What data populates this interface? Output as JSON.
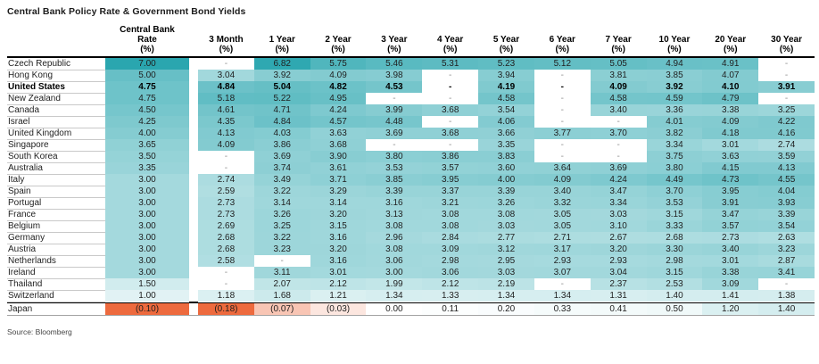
{
  "chart_data": {
    "type": "heatmap",
    "title": "Central Bank Policy Rate & Government Bond Yields",
    "source": "Source: Bloomberg",
    "legend_position": "none",
    "grid": false,
    "colors": {
      "positive_max_teal": "#2aa6af",
      "negative_max_orange": "#ed6a3e",
      "zero_white": "#ffffff",
      "header_rule": "#000000",
      "row_rule": "#c9c9c9"
    },
    "color_scale": {
      "positive_full_value": 7.0,
      "cb_negative_full_value": 0.1,
      "bond_negative_full_value": 0.18
    },
    "columns": [
      {
        "id": "central-bank-rate",
        "lines": [
          "Central Bank",
          "Rate"
        ],
        "unit": "(%)"
      },
      {
        "id": "3-month",
        "lines": [
          "3 Month"
        ],
        "unit": "(%)"
      },
      {
        "id": "1-year",
        "lines": [
          "1 Year"
        ],
        "unit": "(%)"
      },
      {
        "id": "2-year",
        "lines": [
          "2 Year"
        ],
        "unit": "(%)"
      },
      {
        "id": "3-year",
        "lines": [
          "3 Year"
        ],
        "unit": "(%)"
      },
      {
        "id": "4-year",
        "lines": [
          "4 Year"
        ],
        "unit": "(%)"
      },
      {
        "id": "5-year",
        "lines": [
          "5 Year"
        ],
        "unit": "(%)"
      },
      {
        "id": "6-year",
        "lines": [
          "6 Year"
        ],
        "unit": "(%)"
      },
      {
        "id": "7-year",
        "lines": [
          "7 Year"
        ],
        "unit": "(%)"
      },
      {
        "id": "10-year",
        "lines": [
          "10 Year"
        ],
        "unit": "(%)"
      },
      {
        "id": "20-year",
        "lines": [
          "20 Year"
        ],
        "unit": "(%)"
      },
      {
        "id": "30-year",
        "lines": [
          "30 Year"
        ],
        "unit": "(%)"
      }
    ],
    "missing_value_display": "-",
    "rows": [
      {
        "country": "Czech Republic",
        "values": [
          "7.00",
          "-",
          "6.82",
          "5.75",
          "5.46",
          "5.31",
          "5.23",
          "5.12",
          "5.05",
          "4.94",
          "4.91",
          "-"
        ]
      },
      {
        "country": "Hong Kong",
        "values": [
          "5.00",
          "3.04",
          "3.92",
          "4.09",
          "3.98",
          "-",
          "3.94",
          "-",
          "3.81",
          "3.85",
          "4.07",
          "-"
        ]
      },
      {
        "country": "United States",
        "bold": true,
        "values": [
          "4.75",
          "4.84",
          "5.04",
          "4.82",
          "4.53",
          "-",
          "4.19",
          "-",
          "4.09",
          "3.92",
          "4.10",
          "3.91"
        ]
      },
      {
        "country": "New Zealand",
        "values": [
          "4.75",
          "5.18",
          "5.22",
          "4.95",
          "-",
          "-",
          "4.58",
          "-",
          "4.58",
          "4.59",
          "4.79",
          "-"
        ]
      },
      {
        "country": "Canada",
        "values": [
          "4.50",
          "4.61",
          "4.71",
          "4.24",
          "3.99",
          "3.68",
          "3.54",
          "-",
          "3.40",
          "3.36",
          "3.38",
          "3.25"
        ]
      },
      {
        "country": "Israel",
        "values": [
          "4.25",
          "4.35",
          "4.84",
          "4.57",
          "4.48",
          "-",
          "4.06",
          "-",
          "-",
          "4.01",
          "4.09",
          "4.22"
        ]
      },
      {
        "country": "United Kingdom",
        "values": [
          "4.00",
          "4.13",
          "4.03",
          "3.63",
          "3.69",
          "3.68",
          "3.66",
          "3.77",
          "3.70",
          "3.82",
          "4.18",
          "4.16"
        ]
      },
      {
        "country": "Singapore",
        "values": [
          "3.65",
          "4.09",
          "3.86",
          "3.68",
          "-",
          "-",
          "3.35",
          "-",
          "-",
          "3.34",
          "3.01",
          "2.74"
        ]
      },
      {
        "country": "South Korea",
        "values": [
          "3.50",
          "-",
          "3.69",
          "3.90",
          "3.80",
          "3.86",
          "3.83",
          "-",
          "-",
          "3.75",
          "3.63",
          "3.59"
        ]
      },
      {
        "country": "Australia",
        "values": [
          "3.35",
          "-",
          "3.74",
          "3.61",
          "3.53",
          "3.57",
          "3.60",
          "3.64",
          "3.69",
          "3.80",
          "4.15",
          "4.13"
        ]
      },
      {
        "country": "Italy",
        "values": [
          "3.00",
          "2.74",
          "3.49",
          "3.71",
          "3.85",
          "3.95",
          "4.00",
          "4.09",
          "4.24",
          "4.49",
          "4.73",
          "4.55"
        ]
      },
      {
        "country": "Spain",
        "values": [
          "3.00",
          "2.59",
          "3.22",
          "3.29",
          "3.39",
          "3.37",
          "3.39",
          "3.40",
          "3.47",
          "3.70",
          "3.95",
          "4.04"
        ]
      },
      {
        "country": "Portugal",
        "values": [
          "3.00",
          "2.73",
          "3.14",
          "3.14",
          "3.16",
          "3.21",
          "3.26",
          "3.32",
          "3.34",
          "3.53",
          "3.91",
          "3.93"
        ]
      },
      {
        "country": "France",
        "values": [
          "3.00",
          "2.73",
          "3.26",
          "3.20",
          "3.13",
          "3.08",
          "3.08",
          "3.05",
          "3.03",
          "3.15",
          "3.47",
          "3.39"
        ]
      },
      {
        "country": "Belgium",
        "values": [
          "3.00",
          "2.69",
          "3.25",
          "3.15",
          "3.08",
          "3.08",
          "3.03",
          "3.05",
          "3.10",
          "3.33",
          "3.57",
          "3.54"
        ]
      },
      {
        "country": "Germany",
        "values": [
          "3.00",
          "2.68",
          "3.22",
          "3.16",
          "2.96",
          "2.84",
          "2.77",
          "2.71",
          "2.67",
          "2.68",
          "2.73",
          "2.63"
        ]
      },
      {
        "country": "Austria",
        "values": [
          "3.00",
          "2.68",
          "3.23",
          "3.20",
          "3.08",
          "3.09",
          "3.12",
          "3.17",
          "3.20",
          "3.30",
          "3.40",
          "3.23"
        ]
      },
      {
        "country": "Netherlands",
        "values": [
          "3.00",
          "2.58",
          "-",
          "3.16",
          "3.06",
          "2.98",
          "2.95",
          "2.93",
          "2.93",
          "2.98",
          "3.01",
          "2.87"
        ]
      },
      {
        "country": "Ireland",
        "values": [
          "3.00",
          "-",
          "3.11",
          "3.01",
          "3.00",
          "3.06",
          "3.03",
          "3.07",
          "3.04",
          "3.15",
          "3.38",
          "3.41"
        ]
      },
      {
        "country": "Thailand",
        "values": [
          "1.50",
          "-",
          "2.07",
          "2.12",
          "1.99",
          "2.12",
          "2.19",
          "-",
          "2.37",
          "2.53",
          "3.09",
          "-"
        ]
      },
      {
        "country": "Switzerland",
        "values": [
          "1.00",
          "1.18",
          "1.68",
          "1.21",
          "1.34",
          "1.33",
          "1.34",
          "1.34",
          "1.31",
          "1.40",
          "1.41",
          "1.38"
        ]
      },
      {
        "country": "Japan",
        "separator_top": true,
        "values": [
          "(0.10)",
          "(0.18)",
          "(0.07)",
          "(0.03)",
          "0.00",
          "0.11",
          "0.20",
          "0.33",
          "0.41",
          "0.50",
          "1.20",
          "1.40"
        ]
      }
    ]
  }
}
